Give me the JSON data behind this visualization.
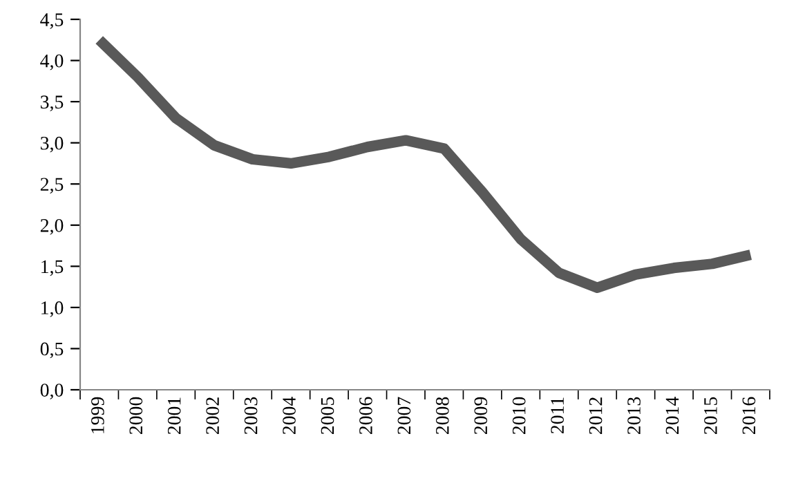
{
  "chart_data": {
    "type": "line",
    "categories": [
      "1999",
      "2000",
      "2001",
      "2002",
      "2003",
      "2004",
      "2005",
      "2006",
      "2007",
      "2008",
      "2009",
      "2010",
      "2011",
      "2012",
      "2013",
      "2014",
      "2015",
      "2016"
    ],
    "series": [
      {
        "color": "#595959",
        "values": [
          4.25,
          3.8,
          3.3,
          2.97,
          2.8,
          2.75,
          2.83,
          2.95,
          3.03,
          2.93,
          2.4,
          1.83,
          1.42,
          1.24,
          1.4,
          1.48,
          1.53,
          1.64
        ]
      }
    ],
    "ylim": [
      0,
      4.5
    ],
    "yticks": [
      {
        "value": 0,
        "label": "0,0"
      },
      {
        "value": 0.5,
        "label": "0,5"
      },
      {
        "value": 1,
        "label": "1,0"
      },
      {
        "value": 1.5,
        "label": "1,5"
      },
      {
        "value": 2,
        "label": "2,0"
      },
      {
        "value": 2.5,
        "label": "2,5"
      },
      {
        "value": 3,
        "label": "3,0"
      },
      {
        "value": 3.5,
        "label": "3,5"
      },
      {
        "value": 4,
        "label": "4,0"
      },
      {
        "value": 4.5,
        "label": "4,5"
      }
    ],
    "grid": false,
    "legend": false,
    "marker": "none",
    "line_style": "solid"
  }
}
